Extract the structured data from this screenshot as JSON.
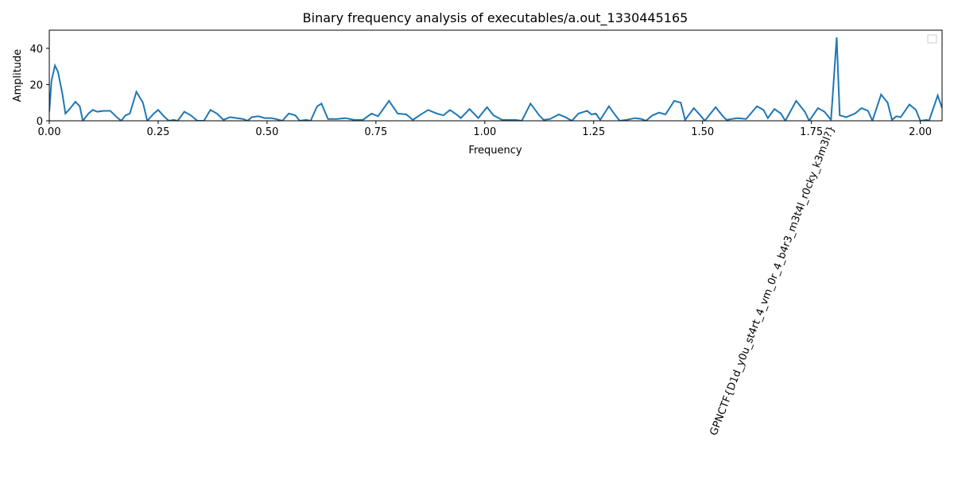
{
  "chart_data": {
    "type": "line",
    "title": "Binary frequency analysis of executables/a.out_1330445165",
    "x_label": "Frequency",
    "y_label": "Amplitude",
    "annotation": "GPNCTF{D1d_y0u_st4rt_4_vm_0r_4_b4r3_m3t4l_r0cky_k3m3l?}",
    "xlim": [
      0,
      2.05
    ],
    "ylim": [
      0,
      50
    ],
    "xticks": [
      {
        "value": 0,
        "label": "0.00"
      },
      {
        "value": 0.25,
        "label": "0.25"
      },
      {
        "value": 0.5,
        "label": "0.50"
      },
      {
        "value": 0.75,
        "label": "0.75"
      },
      {
        "value": 1,
        "label": "1.00"
      },
      {
        "value": 1.25,
        "label": "1.25"
      },
      {
        "value": 1.5,
        "label": "1.50"
      },
      {
        "value": 1.75,
        "label": "1.75"
      },
      {
        "value": 2,
        "label": "2.00"
      }
    ],
    "yticks": [
      0,
      20,
      40
    ],
    "grid": false,
    "series": [
      {
        "color": "#1f77b4",
        "x": [
          0,
          0.005,
          0.013,
          0.02,
          0.03,
          0.037,
          0.045,
          0.06,
          0.07,
          0.077,
          0.09,
          0.1,
          0.11,
          0.125,
          0.14,
          0.155,
          0.165,
          0.175,
          0.185,
          0.2,
          0.215,
          0.225,
          0.24,
          0.25,
          0.265,
          0.275,
          0.285,
          0.295,
          0.31,
          0.325,
          0.34,
          0.355,
          0.37,
          0.385,
          0.4,
          0.415,
          0.43,
          0.445,
          0.455,
          0.465,
          0.48,
          0.495,
          0.51,
          0.52,
          0.535,
          0.55,
          0.565,
          0.575,
          0.59,
          0.6,
          0.615,
          0.625,
          0.64,
          0.66,
          0.68,
          0.7,
          0.72,
          0.74,
          0.755,
          0.78,
          0.8,
          0.82,
          0.835,
          0.85,
          0.87,
          0.89,
          0.905,
          0.92,
          0.935,
          0.945,
          0.965,
          0.985,
          1.005,
          1.02,
          1.04,
          1.07,
          1.085,
          1.105,
          1.125,
          1.135,
          1.15,
          1.17,
          1.185,
          1.2,
          1.215,
          1.235,
          1.245,
          1.255,
          1.265,
          1.285,
          1.3,
          1.31,
          1.325,
          1.345,
          1.36,
          1.37,
          1.385,
          1.4,
          1.415,
          1.435,
          1.45,
          1.46,
          1.48,
          1.495,
          1.505,
          1.53,
          1.545,
          1.555,
          1.58,
          1.6,
          1.625,
          1.64,
          1.65,
          1.665,
          1.68,
          1.69,
          1.715,
          1.735,
          1.745,
          1.765,
          1.78,
          1.795,
          1.808,
          1.815,
          1.83,
          1.85,
          1.865,
          1.88,
          1.89,
          1.91,
          1.925,
          1.935,
          1.945,
          1.955,
          1.975,
          1.99,
          2,
          2.015,
          2.02,
          2.04,
          2.05
        ],
        "values": [
          5,
          22,
          30.5,
          27,
          15,
          4,
          6,
          10.5,
          8,
          0,
          4,
          6,
          5,
          5.5,
          5.5,
          2,
          0,
          3,
          4,
          16,
          10,
          0,
          4,
          6,
          2,
          0,
          0.5,
          0,
          5,
          3,
          0,
          0,
          6,
          4,
          0.5,
          2,
          1.5,
          1,
          0,
          2,
          2.5,
          1.5,
          1.5,
          1,
          0,
          4,
          3,
          0,
          0.5,
          0,
          8,
          9.5,
          1,
          1,
          1.5,
          0.5,
          0.5,
          4,
          2.5,
          11,
          4,
          3.5,
          0.5,
          3,
          6,
          4,
          3,
          6,
          3.5,
          1.5,
          6.5,
          1.5,
          7.5,
          3,
          0.5,
          0.5,
          0,
          9.5,
          3,
          0.5,
          1,
          3.5,
          2,
          0,
          4,
          5.5,
          3.5,
          4,
          0.5,
          8,
          3,
          0,
          0.5,
          1.5,
          1,
          0,
          3,
          4.5,
          3.5,
          11,
          10,
          0.5,
          7,
          3,
          0,
          7.5,
          3,
          0.5,
          1.5,
          1,
          8,
          6,
          1.5,
          6.5,
          4,
          0,
          11,
          5,
          0,
          7,
          5,
          0.5,
          46,
          3,
          2,
          4,
          7,
          5.5,
          0,
          14.5,
          10,
          0.5,
          2.5,
          2,
          9,
          6,
          0,
          0.5,
          0,
          14,
          7
        ]
      }
    ]
  }
}
